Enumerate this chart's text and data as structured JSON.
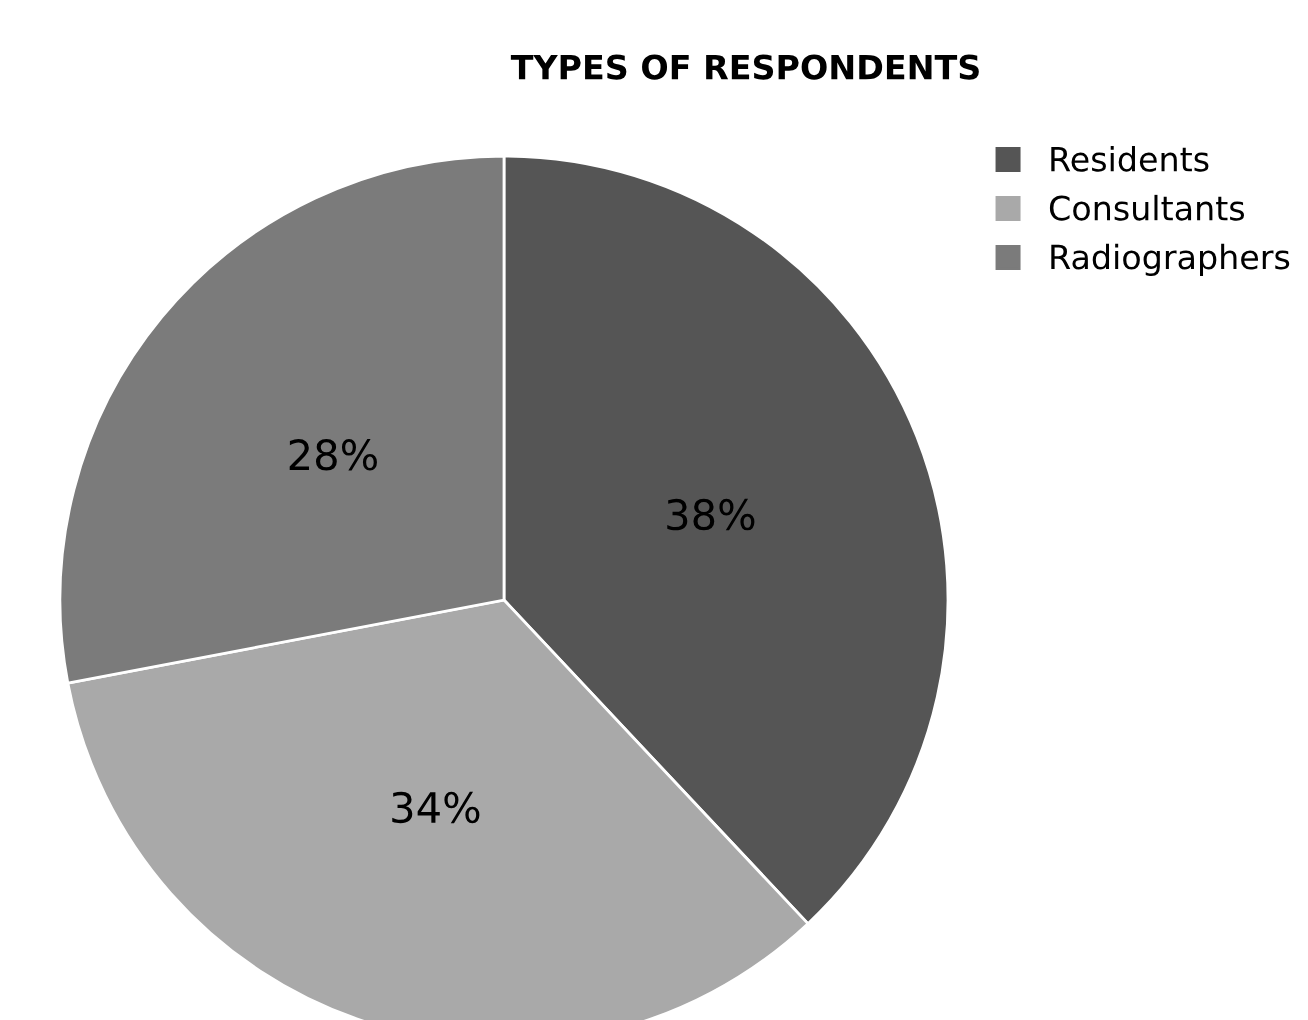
{
  "chart_data": {
    "type": "pie",
    "title": "TYPES OF RESPONDENTS",
    "categories": [
      "Residents",
      "Consultants",
      "Radiographers"
    ],
    "values": [
      38,
      34,
      28
    ],
    "colors": [
      "#555555",
      "#a9a9a9",
      "#7b7b7b"
    ],
    "value_labels": [
      "38%",
      "34%",
      "28%"
    ],
    "legend": "right"
  }
}
